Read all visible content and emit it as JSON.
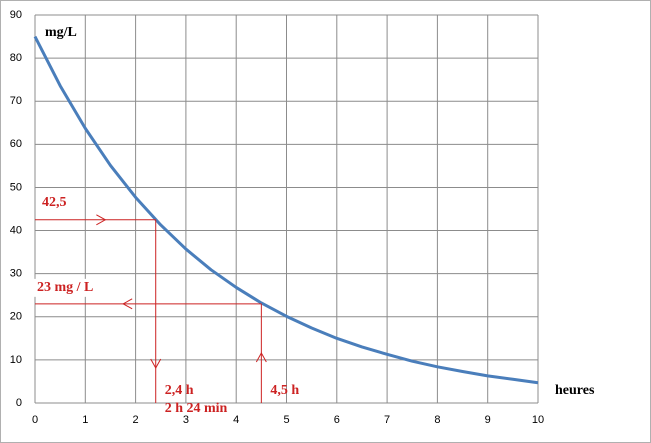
{
  "chart_data": {
    "type": "line",
    "y_label": "mg/L",
    "x_label": "heures",
    "x": [
      0,
      0.5,
      1,
      1.5,
      2,
      2.5,
      3,
      3.5,
      4,
      4.5,
      5,
      5.5,
      6,
      6.5,
      7,
      7.5,
      8,
      8.5,
      9,
      9.5,
      10
    ],
    "values": [
      85,
      73.6,
      63.7,
      55.1,
      47.7,
      41.3,
      35.7,
      30.9,
      26.8,
      23.2,
      20.1,
      17.4,
      15.0,
      13.0,
      11.3,
      9.7,
      8.4,
      7.3,
      6.3,
      5.5,
      4.7
    ],
    "color": "#4a7ebb",
    "xlim": [
      0,
      10
    ],
    "xticks": [
      0,
      1,
      2,
      3,
      4,
      5,
      6,
      7,
      8,
      9,
      10
    ],
    "ylim": [
      0,
      90
    ],
    "yticks": [
      0,
      10,
      20,
      30,
      40,
      50,
      60,
      70,
      80,
      90
    ],
    "grid": true,
    "guide_color": "#cc2222",
    "guides": [
      {
        "x": 2.4,
        "y": 42.5,
        "y_text": "42,5",
        "x_texts": [
          "2,4 h",
          "2 h 24 min"
        ]
      },
      {
        "x": 4.5,
        "y": 23,
        "y_text": "23 mg / L",
        "x_texts": [
          "4,5 h"
        ]
      }
    ]
  }
}
